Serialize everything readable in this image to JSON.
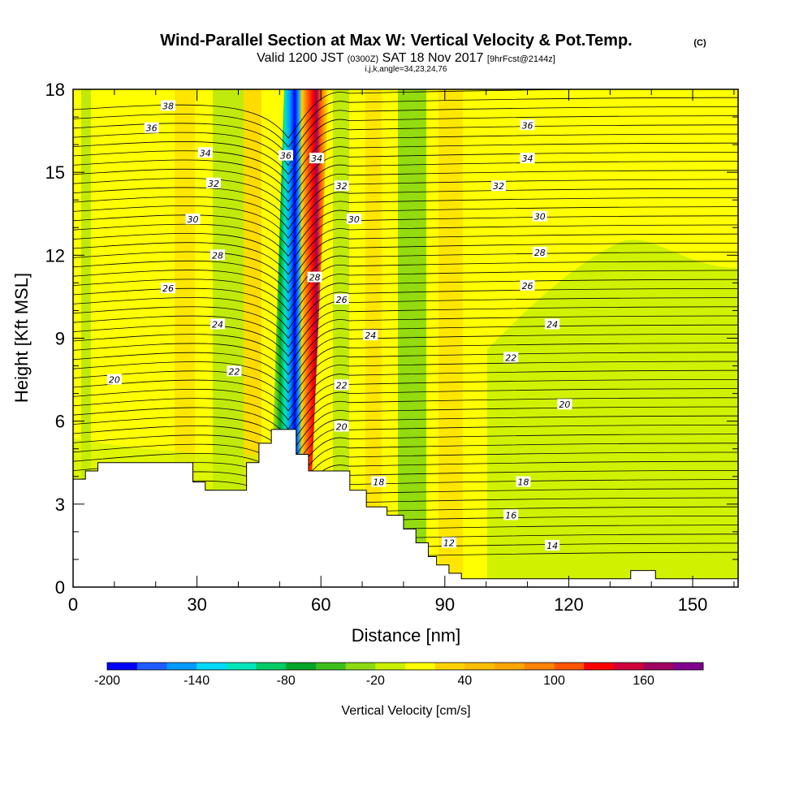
{
  "chart_data": {
    "type": "heatmap",
    "title": "Wind-Parallel Section at Max W: Vertical Velocity & Pot.Temp.",
    "title_mark": "(C)",
    "subtitle": {
      "main_a": "Valid 1200 JST",
      "zulu": "(0300Z)",
      "main_b": "SAT 18 Nov 2017",
      "fcst": "[9hrFcst@2144z]"
    },
    "indices": "i,j,k,angle=34,23,24,76",
    "xlabel": "Distance [nm]",
    "ylabel": "Height [Kft MSL]",
    "xlim": [
      0,
      161
    ],
    "ylim": [
      0,
      18
    ],
    "xticks": [
      "0",
      "30",
      "60",
      "90",
      "120",
      "150"
    ],
    "yticks": [
      "0",
      "3",
      "6",
      "9",
      "12",
      "15",
      "18"
    ],
    "colorbar": {
      "label": "Vertical Velocity [cm/s]",
      "tick_labels": [
        "-200",
        "-140",
        "-80",
        "-20",
        "40",
        "100",
        "160"
      ],
      "colors": [
        "#0000ff",
        "#1f5cff",
        "#0099ff",
        "#00d9ff",
        "#00e6bb",
        "#00cc66",
        "#00a529",
        "#3dbe1b",
        "#8cd914",
        "#c8f000",
        "#ffff00",
        "#ffd200",
        "#ffbe00",
        "#ffa500",
        "#ff8200",
        "#ff5500",
        "#ff0000",
        "#d0003c",
        "#a00060",
        "#800090"
      ]
    },
    "theta_contour_labels": [
      {
        "text": "38",
        "x": 23,
        "y": 17.4
      },
      {
        "text": "36",
        "x": 19,
        "y": 16.6
      },
      {
        "text": "34",
        "x": 32,
        "y": 15.7
      },
      {
        "text": "32",
        "x": 34,
        "y": 14.6
      },
      {
        "text": "30",
        "x": 29,
        "y": 13.3
      },
      {
        "text": "28",
        "x": 35,
        "y": 12.0
      },
      {
        "text": "26",
        "x": 23,
        "y": 10.8
      },
      {
        "text": "24",
        "x": 35,
        "y": 9.5
      },
      {
        "text": "22",
        "x": 39,
        "y": 7.8
      },
      {
        "text": "20",
        "x": 10,
        "y": 7.5
      },
      {
        "text": "36",
        "x": 51.5,
        "y": 15.6
      },
      {
        "text": "34",
        "x": 59,
        "y": 15.5
      },
      {
        "text": "32",
        "x": 65,
        "y": 14.5
      },
      {
        "text": "30",
        "x": 68,
        "y": 13.3
      },
      {
        "text": "28",
        "x": 58.5,
        "y": 11.2
      },
      {
        "text": "26",
        "x": 65,
        "y": 10.4
      },
      {
        "text": "24",
        "x": 72,
        "y": 9.1
      },
      {
        "text": "22",
        "x": 65,
        "y": 7.3
      },
      {
        "text": "20",
        "x": 65,
        "y": 5.8
      },
      {
        "text": "18",
        "x": 74,
        "y": 3.8
      },
      {
        "text": "12",
        "x": 91,
        "y": 1.6
      },
      {
        "text": "36",
        "x": 110,
        "y": 16.7
      },
      {
        "text": "34",
        "x": 110,
        "y": 15.5
      },
      {
        "text": "32",
        "x": 103,
        "y": 14.5
      },
      {
        "text": "30",
        "x": 113,
        "y": 13.4
      },
      {
        "text": "28",
        "x": 113,
        "y": 12.1
      },
      {
        "text": "26",
        "x": 110,
        "y": 10.9
      },
      {
        "text": "24",
        "x": 116,
        "y": 9.5
      },
      {
        "text": "22",
        "x": 106,
        "y": 8.3
      },
      {
        "text": "20",
        "x": 119,
        "y": 6.6
      },
      {
        "text": "18",
        "x": 109,
        "y": 3.8
      },
      {
        "text": "16",
        "x": 106,
        "y": 2.6
      },
      {
        "text": "14",
        "x": 116,
        "y": 1.5
      }
    ],
    "terrain_profile": [
      [
        0,
        3.9
      ],
      [
        3,
        3.9
      ],
      [
        3,
        4.2
      ],
      [
        6,
        4.2
      ],
      [
        6,
        4.5
      ],
      [
        29,
        4.5
      ],
      [
        29,
        3.8
      ],
      [
        32,
        3.8
      ],
      [
        32,
        3.5
      ],
      [
        42,
        3.5
      ],
      [
        42,
        4.5
      ],
      [
        45,
        4.5
      ],
      [
        45,
        5.2
      ],
      [
        48,
        5.2
      ],
      [
        48,
        5.7
      ],
      [
        54,
        5.7
      ],
      [
        54,
        4.8
      ],
      [
        57,
        4.8
      ],
      [
        57,
        4.2
      ],
      [
        67,
        4.2
      ],
      [
        67,
        3.5
      ],
      [
        71,
        3.5
      ],
      [
        71,
        2.9
      ],
      [
        76,
        2.9
      ],
      [
        76,
        2.6
      ],
      [
        80,
        2.6
      ],
      [
        80,
        2.1
      ],
      [
        83,
        2.1
      ],
      [
        83,
        1.6
      ],
      [
        86,
        1.6
      ],
      [
        86,
        1.1
      ],
      [
        88,
        1.1
      ],
      [
        88,
        0.8
      ],
      [
        91,
        0.8
      ],
      [
        91,
        0.5
      ],
      [
        94,
        0.5
      ],
      [
        94,
        0.3
      ],
      [
        135,
        0.3
      ],
      [
        135,
        0.6
      ],
      [
        141,
        0.6
      ],
      [
        141,
        0.3
      ],
      [
        161,
        0.3
      ]
    ]
  }
}
